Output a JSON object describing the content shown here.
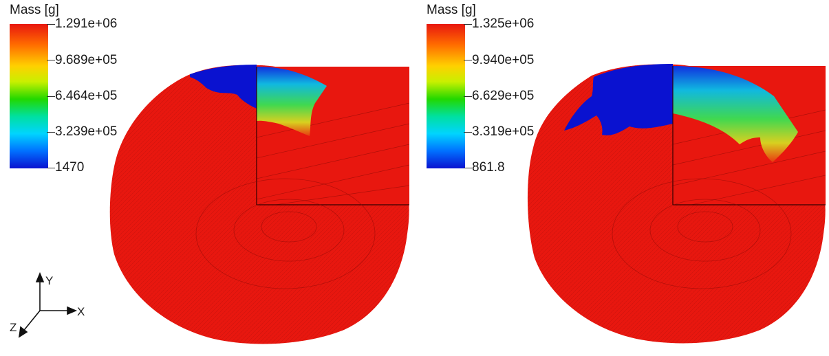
{
  "panels": [
    {
      "legend": {
        "title": "Mass [g]",
        "ticks": [
          "1.291e+06",
          "9.689e+05",
          "6.464e+05",
          "3.239e+05",
          "1470"
        ]
      }
    },
    {
      "legend": {
        "title": "Mass [g]",
        "ticks": [
          "1.325e+06",
          "9.940e+05",
          "6.629e+05",
          "3.319e+05",
          "861.8"
        ]
      }
    }
  ],
  "triad": {
    "y": "Y",
    "x": "X",
    "z": "Z"
  },
  "colors": {
    "body": "#e8170f",
    "low": "#0a12d0",
    "high": "#e8170f"
  }
}
